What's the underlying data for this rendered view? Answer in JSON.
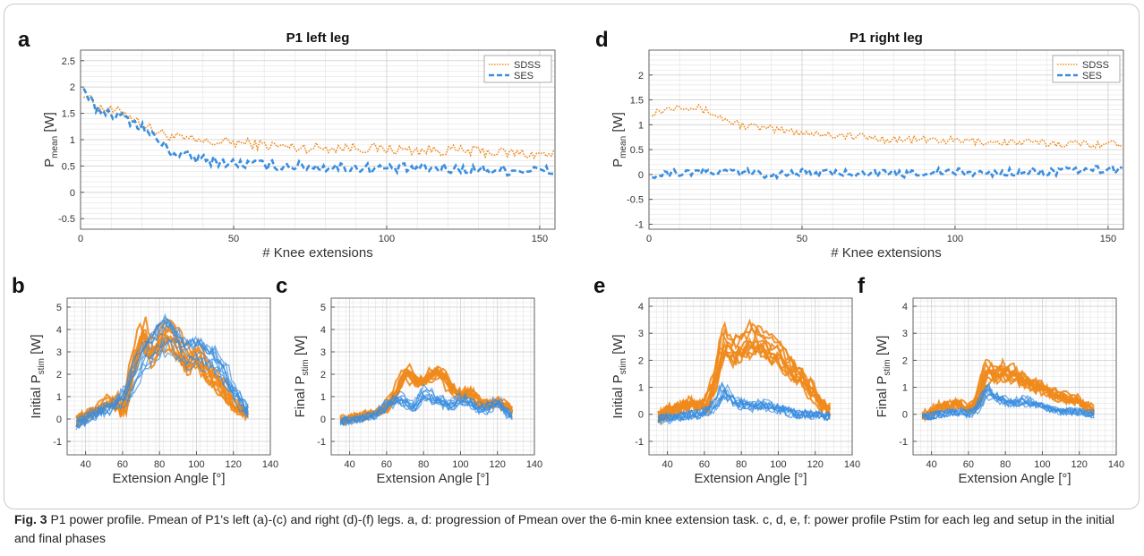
{
  "caption": {
    "label": "Fig. 3",
    "text": "P1 power profile. Pmean of P1's left (a)-(c) and right (d)-(f) legs. a, d: progression of Pmean over the 6-min knee extension task. c, d, e, f: power profile Pstim for each leg and setup in the initial and final phases"
  },
  "colors": {
    "sdss": "#f08a1c",
    "ses": "#3a8ee0",
    "grid": "#e3e3e3",
    "frame": "#c9c9c9"
  },
  "chart_data": [
    {
      "id": "a",
      "panel_label": "a",
      "type": "line",
      "title": "P1 left leg",
      "xlabel": "# Knee extensions",
      "ylabel_main": "P",
      "ylabel_sub": "mean",
      "ylabel_unit": "[W]",
      "xlim": [
        0,
        155
      ],
      "ylim": [
        -0.7,
        2.7
      ],
      "xticks": [
        0,
        50,
        100,
        150
      ],
      "yticks": [
        -0.5,
        0,
        0.5,
        1,
        1.5,
        2,
        2.5
      ],
      "grid": true,
      "legend_position": "top-right",
      "legend": [
        "SDSS",
        "SES"
      ],
      "series": [
        {
          "name": "SDSS",
          "style": "dotted",
          "anchors": [
            [
              1,
              1.9
            ],
            [
              5,
              1.65
            ],
            [
              10,
              1.55
            ],
            [
              15,
              1.5
            ],
            [
              20,
              1.3
            ],
            [
              25,
              1.15
            ],
            [
              30,
              1.05
            ],
            [
              40,
              0.95
            ],
            [
              50,
              0.95
            ],
            [
              60,
              0.9
            ],
            [
              70,
              0.85
            ],
            [
              80,
              0.85
            ],
            [
              90,
              0.85
            ],
            [
              100,
              0.82
            ],
            [
              110,
              0.8
            ],
            [
              120,
              0.8
            ],
            [
              130,
              0.78
            ],
            [
              140,
              0.75
            ],
            [
              150,
              0.72
            ],
            [
              155,
              0.72
            ]
          ],
          "noise": 0.1
        },
        {
          "name": "SES",
          "style": "dashed",
          "anchors": [
            [
              1,
              1.9
            ],
            [
              5,
              1.6
            ],
            [
              10,
              1.5
            ],
            [
              15,
              1.4
            ],
            [
              20,
              1.25
            ],
            [
              25,
              1.0
            ],
            [
              30,
              0.75
            ],
            [
              40,
              0.62
            ],
            [
              50,
              0.55
            ],
            [
              60,
              0.52
            ],
            [
              70,
              0.5
            ],
            [
              80,
              0.48
            ],
            [
              90,
              0.47
            ],
            [
              100,
              0.45
            ],
            [
              110,
              0.45
            ],
            [
              120,
              0.45
            ],
            [
              130,
              0.43
            ],
            [
              140,
              0.42
            ],
            [
              150,
              0.42
            ],
            [
              155,
              0.4
            ]
          ],
          "noise": 0.1
        }
      ]
    },
    {
      "id": "d",
      "panel_label": "d",
      "type": "line",
      "title": "P1 right leg",
      "xlabel": "# Knee extensions",
      "ylabel_main": "P",
      "ylabel_sub": "mean",
      "ylabel_unit": "[W]",
      "xlim": [
        0,
        155
      ],
      "ylim": [
        -1.1,
        2.5
      ],
      "xticks": [
        0,
        50,
        100,
        150
      ],
      "yticks": [
        -1,
        -0.5,
        0,
        0.5,
        1,
        1.5,
        2
      ],
      "grid": true,
      "legend_position": "top-right",
      "legend": [
        "SDSS",
        "SES"
      ],
      "series": [
        {
          "name": "SDSS",
          "style": "dotted",
          "anchors": [
            [
              1,
              1.25
            ],
            [
              5,
              1.3
            ],
            [
              10,
              1.4
            ],
            [
              15,
              1.35
            ],
            [
              20,
              1.25
            ],
            [
              25,
              1.1
            ],
            [
              30,
              1.0
            ],
            [
              40,
              0.9
            ],
            [
              50,
              0.85
            ],
            [
              60,
              0.8
            ],
            [
              70,
              0.75
            ],
            [
              80,
              0.7
            ],
            [
              90,
              0.7
            ],
            [
              100,
              0.68
            ],
            [
              110,
              0.66
            ],
            [
              120,
              0.64
            ],
            [
              130,
              0.63
            ],
            [
              140,
              0.62
            ],
            [
              150,
              0.62
            ],
            [
              155,
              0.6
            ]
          ],
          "noise": 0.08
        },
        {
          "name": "SES",
          "style": "dashed",
          "anchors": [
            [
              1,
              0.0
            ],
            [
              10,
              0.05
            ],
            [
              20,
              0.05
            ],
            [
              30,
              0.05
            ],
            [
              40,
              0.0
            ],
            [
              50,
              0.05
            ],
            [
              60,
              0.02
            ],
            [
              70,
              0.05
            ],
            [
              80,
              0.0
            ],
            [
              90,
              0.05
            ],
            [
              100,
              0.05
            ],
            [
              110,
              0.02
            ],
            [
              120,
              0.05
            ],
            [
              130,
              0.05
            ],
            [
              140,
              0.08
            ],
            [
              150,
              0.1
            ],
            [
              155,
              0.1
            ]
          ],
          "noise": 0.08
        }
      ]
    },
    {
      "id": "b",
      "panel_label": "b",
      "type": "line",
      "title": "",
      "xlabel": "Extension Angle [°]",
      "ylabel_main": "Initial P",
      "ylabel_sub": "stim",
      "ylabel_unit": "[W]",
      "xlim": [
        30,
        140
      ],
      "ylim": [
        -1.6,
        5.4
      ],
      "xticks": [
        40,
        60,
        80,
        100,
        120,
        140
      ],
      "yticks": [
        -1,
        0,
        1,
        2,
        3,
        4,
        5
      ],
      "grid": true,
      "series": [
        {
          "name": "SDSS",
          "curves": 10,
          "noise": 0.25,
          "x": [
            35,
            45,
            55,
            60,
            65,
            70,
            75,
            80,
            85,
            90,
            95,
            100,
            105,
            110,
            115,
            120,
            128
          ],
          "y": [
            -0.1,
            0.4,
            0.9,
            0.3,
            2.2,
            4.0,
            3.0,
            3.6,
            4.0,
            3.3,
            2.5,
            3.0,
            2.2,
            1.8,
            1.2,
            0.6,
            0.2
          ]
        },
        {
          "name": "SES",
          "curves": 10,
          "noise": 0.25,
          "x": [
            35,
            45,
            55,
            60,
            65,
            70,
            75,
            80,
            85,
            90,
            95,
            100,
            105,
            110,
            115,
            120,
            128
          ],
          "y": [
            -0.2,
            0.2,
            0.6,
            0.8,
            1.5,
            2.5,
            3.0,
            3.5,
            3.8,
            3.2,
            2.8,
            3.0,
            2.8,
            2.6,
            2.0,
            1.2,
            0.3
          ]
        }
      ]
    },
    {
      "id": "c",
      "panel_label": "c",
      "type": "line",
      "title": "",
      "xlabel": "Extension Angle [°]",
      "ylabel_main": "Final P",
      "ylabel_sub": "stim",
      "ylabel_unit": "[W]",
      "xlim": [
        30,
        140
      ],
      "ylim": [
        -1.6,
        5.4
      ],
      "xticks": [
        40,
        60,
        80,
        100,
        120,
        140
      ],
      "yticks": [
        -1,
        0,
        1,
        2,
        3,
        4,
        5
      ],
      "grid": true,
      "series": [
        {
          "name": "SDSS",
          "curves": 10,
          "noise": 0.2,
          "x": [
            35,
            45,
            55,
            60,
            65,
            70,
            75,
            80,
            85,
            90,
            95,
            100,
            105,
            110,
            115,
            120,
            128
          ],
          "y": [
            -0.05,
            0.1,
            0.3,
            0.5,
            1.2,
            2.1,
            1.5,
            1.6,
            1.9,
            1.8,
            1.2,
            1.0,
            1.1,
            0.6,
            0.6,
            0.7,
            0.3
          ]
        },
        {
          "name": "SES",
          "curves": 10,
          "noise": 0.2,
          "x": [
            35,
            45,
            55,
            60,
            65,
            70,
            75,
            80,
            85,
            90,
            95,
            100,
            105,
            110,
            115,
            120,
            128
          ],
          "y": [
            -0.1,
            0.0,
            0.2,
            0.6,
            0.9,
            0.9,
            0.5,
            1.2,
            1.0,
            0.8,
            0.6,
            0.9,
            0.8,
            0.5,
            0.5,
            0.8,
            0.1
          ]
        }
      ]
    },
    {
      "id": "e",
      "panel_label": "e",
      "type": "line",
      "title": "",
      "xlabel": "Extension Angle [°]",
      "ylabel_main": "Initial P",
      "ylabel_sub": "stim",
      "ylabel_unit": "[W]",
      "xlim": [
        30,
        140
      ],
      "ylim": [
        -1.5,
        4.3
      ],
      "xticks": [
        40,
        60,
        80,
        100,
        120,
        140
      ],
      "yticks": [
        -1,
        0,
        1,
        2,
        3,
        4
      ],
      "grid": true,
      "series": [
        {
          "name": "SDSS",
          "curves": 10,
          "noise": 0.25,
          "x": [
            35,
            45,
            55,
            60,
            65,
            70,
            75,
            80,
            85,
            90,
            95,
            100,
            105,
            110,
            115,
            120,
            128
          ],
          "y": [
            -0.1,
            0.3,
            0.4,
            0.3,
            1.2,
            2.8,
            2.4,
            2.6,
            2.9,
            2.8,
            2.5,
            2.4,
            1.9,
            1.6,
            1.2,
            0.7,
            0.1
          ]
        },
        {
          "name": "SES",
          "curves": 10,
          "noise": 0.18,
          "x": [
            35,
            45,
            55,
            60,
            65,
            70,
            75,
            80,
            85,
            90,
            95,
            100,
            105,
            110,
            115,
            120,
            128
          ],
          "y": [
            -0.2,
            -0.1,
            0.0,
            0.1,
            0.3,
            0.9,
            0.5,
            0.4,
            0.3,
            0.4,
            0.3,
            0.2,
            0.1,
            0.0,
            0.0,
            0.0,
            -0.1
          ]
        }
      ]
    },
    {
      "id": "f",
      "panel_label": "f",
      "type": "line",
      "title": "",
      "xlabel": "Extension Angle [°]",
      "ylabel_main": "Final P",
      "ylabel_sub": "stim",
      "ylabel_unit": "[W]",
      "xlim": [
        30,
        140
      ],
      "ylim": [
        -1.5,
        4.3
      ],
      "xticks": [
        40,
        60,
        80,
        100,
        120,
        140
      ],
      "yticks": [
        -1,
        0,
        1,
        2,
        3,
        4
      ],
      "grid": true,
      "series": [
        {
          "name": "SDSS",
          "curves": 10,
          "noise": 0.18,
          "x": [
            35,
            45,
            55,
            60,
            65,
            70,
            75,
            80,
            85,
            90,
            95,
            100,
            105,
            110,
            115,
            120,
            128
          ],
          "y": [
            -0.1,
            0.3,
            0.4,
            0.2,
            0.5,
            1.7,
            1.5,
            1.6,
            1.5,
            1.3,
            1.1,
            1.0,
            0.8,
            0.7,
            0.6,
            0.5,
            0.1
          ]
        },
        {
          "name": "SES",
          "curves": 10,
          "noise": 0.15,
          "x": [
            35,
            45,
            55,
            60,
            65,
            70,
            75,
            80,
            85,
            90,
            95,
            100,
            105,
            110,
            115,
            120,
            128
          ],
          "y": [
            -0.1,
            0.0,
            0.1,
            0.0,
            0.2,
            0.9,
            0.6,
            0.5,
            0.4,
            0.5,
            0.4,
            0.3,
            0.2,
            0.1,
            0.1,
            0.1,
            0.0
          ]
        }
      ]
    }
  ]
}
